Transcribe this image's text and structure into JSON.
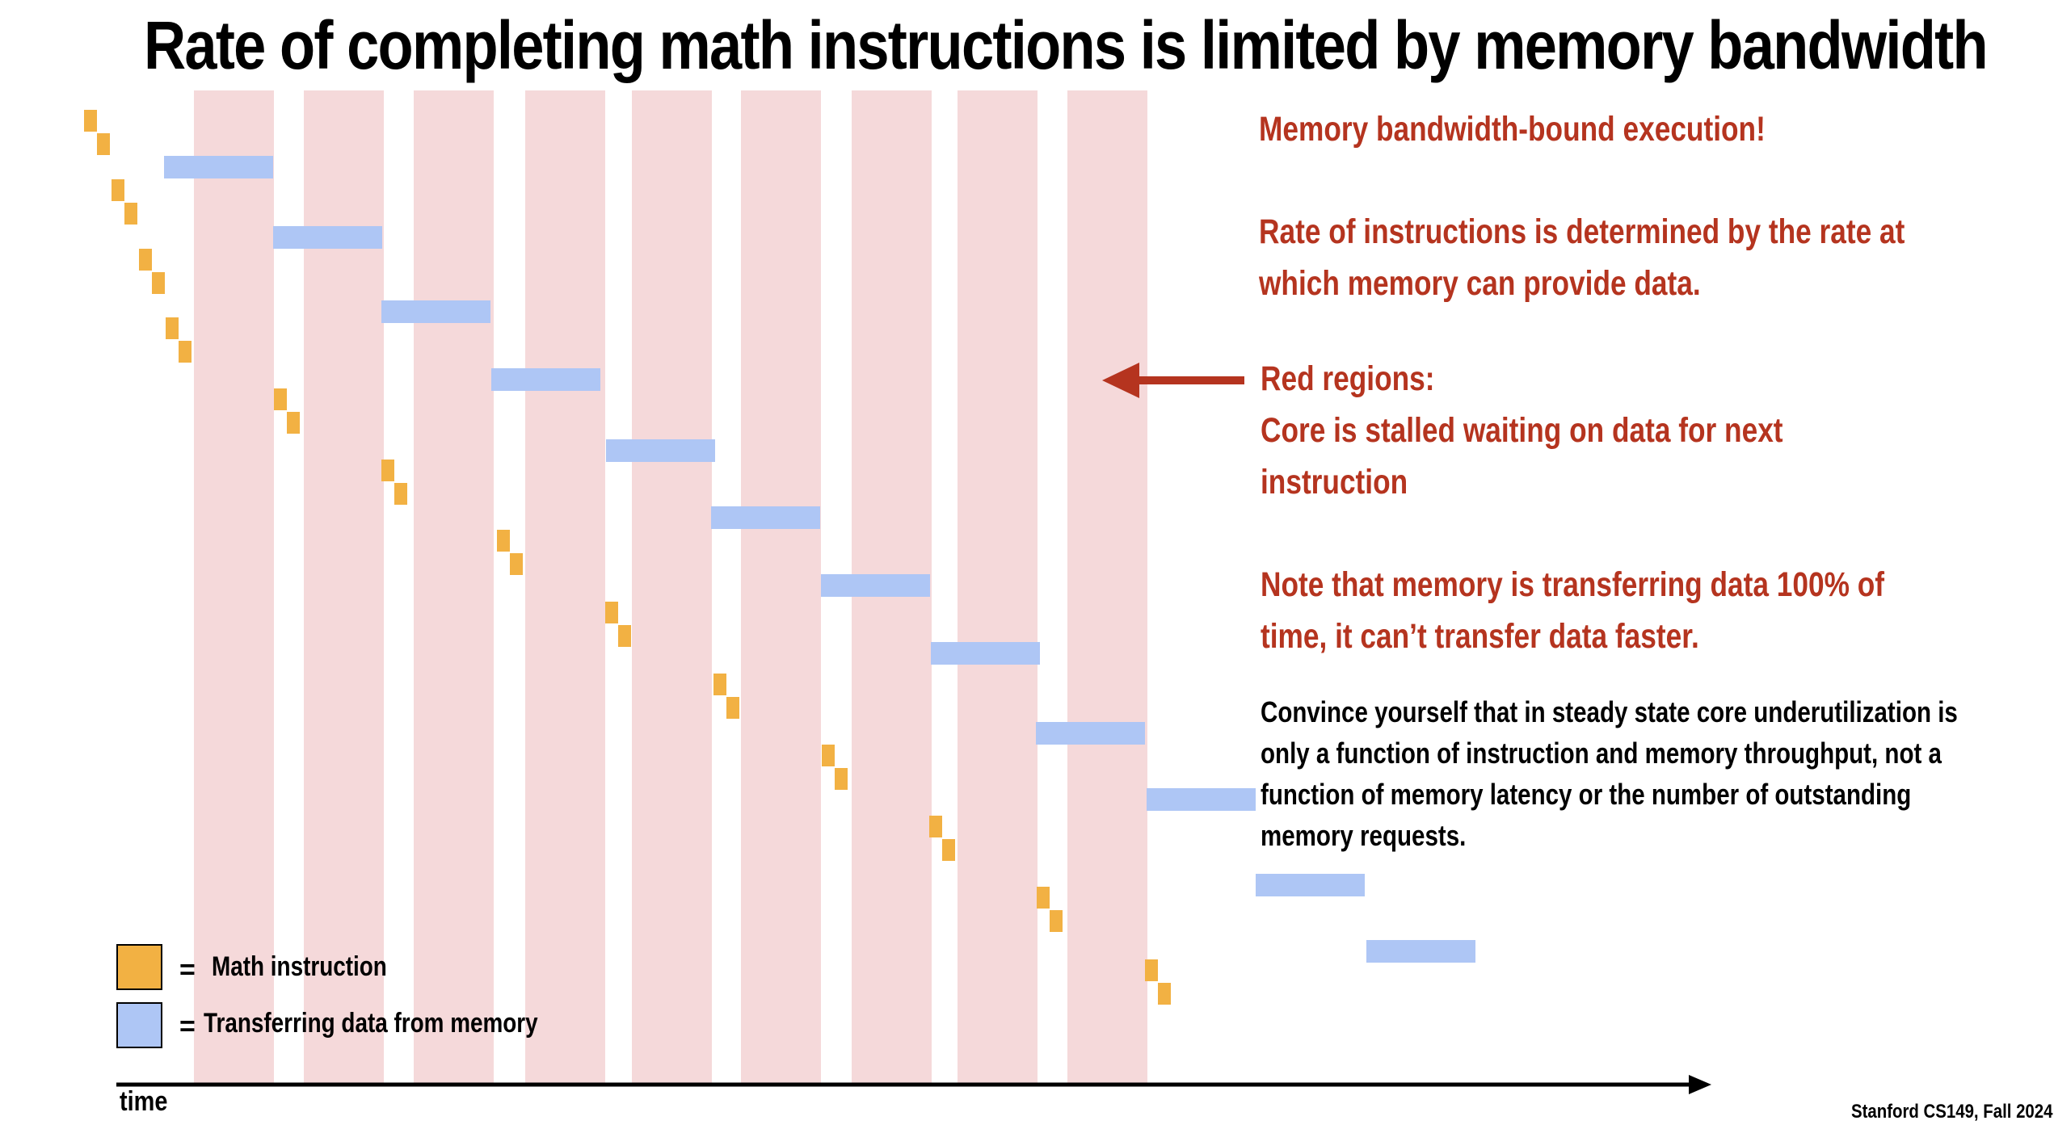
{
  "title": "Rate of completing math instructions is limited by memory bandwidth",
  "colors": {
    "stall_region": "#f5d9da",
    "math_instruction": "#f2b143",
    "memory_transfer": "#aec6f5",
    "accent_red": "#b5341f",
    "axis": "#000000"
  },
  "legend": {
    "math": {
      "label": "Math instruction",
      "color": "#f2b143"
    },
    "memory": {
      "label": "Transferring data from memory",
      "color": "#aec6f5"
    }
  },
  "annotations": {
    "headline": "Memory bandwidth-bound execution!",
    "rate_line1": "Rate of instructions is determined by the rate at",
    "rate_line2": "which memory can provide data.",
    "red_regions_label": "Red regions:",
    "stall_line1": "Core is stalled waiting on data for next",
    "stall_line2": "instruction",
    "note_line1": "Note that memory is transferring data 100% of",
    "note_line2": "time, it can’t transfer data faster.",
    "convince_line1": "Convince yourself that in steady state core underutilization is",
    "convince_line2": "only a function of instruction and memory throughput, not a",
    "convince_line3": "function of memory latency or the number of outstanding",
    "convince_line4": "memory requests."
  },
  "axis": {
    "label": "time"
  },
  "footer": "Stanford CS149, Fall 2024",
  "diagram": {
    "math_instruction_groups": 13,
    "memory_transfers": 12,
    "stall_regions": 9
  }
}
